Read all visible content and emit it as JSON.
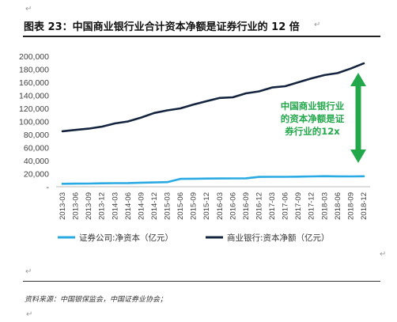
{
  "figure": {
    "title": "图表 23：中国商业银行业合计资本净额是证券行业的 12 倍",
    "source": "资料来源：中国银保监会，中国证券业协会；"
  },
  "annotation": {
    "lines": [
      "中国商业银行业",
      "的资本净额是证",
      "券行业的12x"
    ],
    "color": "#22a84a"
  },
  "chart_data": {
    "type": "line",
    "x": [
      "2013-03",
      "2013-06",
      "2013-09",
      "2013-12",
      "2014-03",
      "2014-06",
      "2014-09",
      "2014-12",
      "2015-03",
      "2015-06",
      "2015-09",
      "2015-12",
      "2016-03",
      "2016-06",
      "2016-09",
      "2016-12",
      "2017-03",
      "2017-06",
      "2017-09",
      "2017-12",
      "2018-03",
      "2018-06",
      "2018-09",
      "2018-12"
    ],
    "y_ticks": [
      "-",
      "20,000",
      "40,000",
      "60,000",
      "80,000",
      "100,000",
      "120,000",
      "140,000",
      "160,000",
      "180,000",
      "200,000"
    ],
    "ylim": [
      0,
      200000
    ],
    "grid": false,
    "legend_position": "bottom",
    "series": [
      {
        "name": "证券公司:净资本（亿元）",
        "color": "#29aae2",
        "values": [
          4500,
          4700,
          4900,
          5200,
          5400,
          5600,
          6200,
          6600,
          7000,
          12000,
          12300,
          12500,
          12600,
          12700,
          12800,
          15000,
          15100,
          15200,
          15400,
          15800,
          16100,
          15900,
          15800,
          16000
        ]
      },
      {
        "name": "商业银行:资本净额（亿元）",
        "color": "#14243e",
        "values": [
          85000,
          87000,
          89000,
          92000,
          97000,
          100000,
          106000,
          113000,
          117000,
          120000,
          126000,
          131000,
          136000,
          137000,
          143000,
          146000,
          152000,
          154000,
          160000,
          166000,
          171000,
          174000,
          181000,
          189000
        ]
      }
    ]
  }
}
